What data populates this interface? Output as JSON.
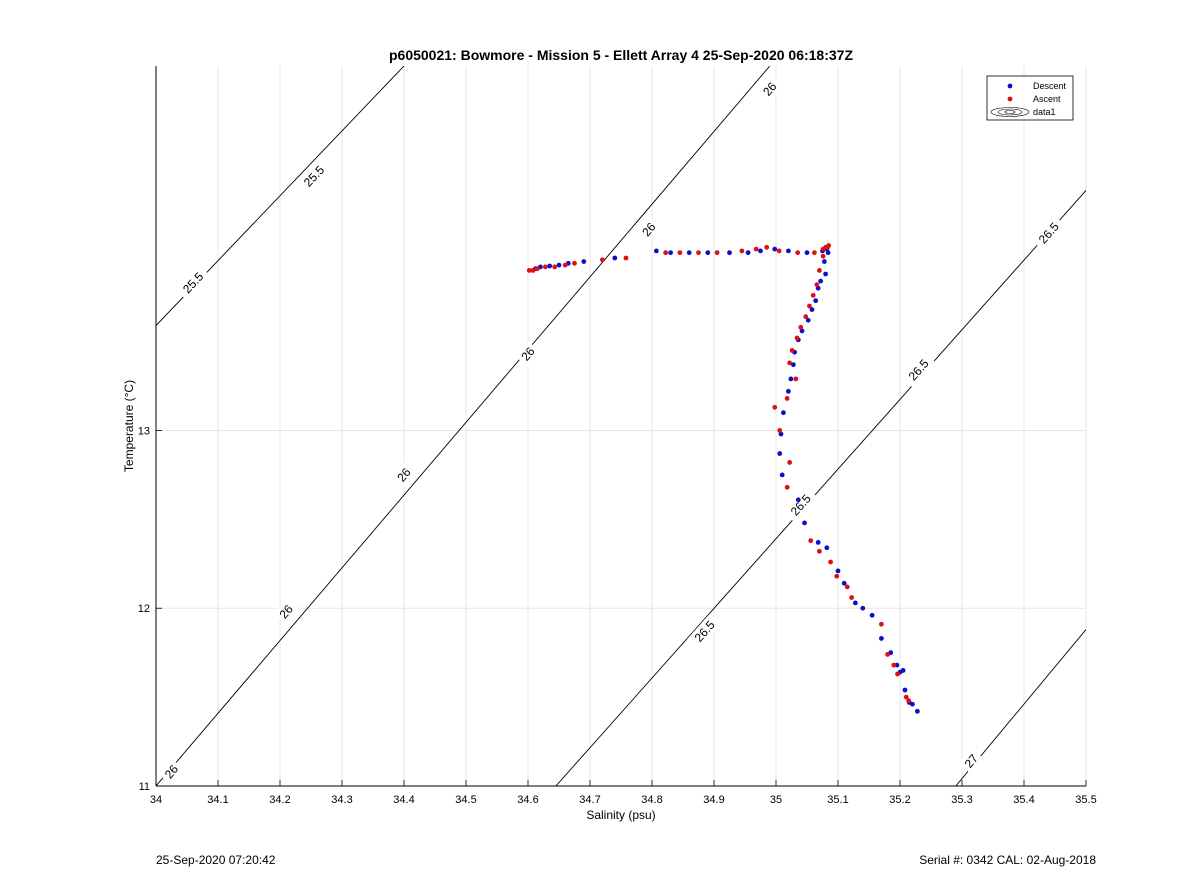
{
  "footer": {
    "timestamp": "25-Sep-2020 07:20:42",
    "serial_cal": "Serial #: 0342  CAL: 02-Aug-2018"
  },
  "chart_data": {
    "type": "scatter",
    "title": "p6050021: Bowmore - Mission 5 - Ellett Array 4 25-Sep-2020 06:18:37Z",
    "xlabel": "Salinity (psu)",
    "ylabel": "Temperature (°C)",
    "xlim": [
      34,
      35.5
    ],
    "ylim": [
      11,
      15.05
    ],
    "x_ticks": [
      34,
      34.1,
      34.2,
      34.3,
      34.4,
      34.5,
      34.6,
      34.7,
      34.8,
      34.9,
      35,
      35.1,
      35.2,
      35.3,
      35.4,
      35.5
    ],
    "x_tick_labels": [
      "34",
      "34.1",
      "34.2",
      "34.3",
      "34.4",
      "34.5",
      "34.6",
      "34.7",
      "34.8",
      "34.9",
      "35",
      "35.1",
      "35.2",
      "35.3",
      "35.4",
      "35.5"
    ],
    "y_ticks": [
      11,
      12,
      13
    ],
    "y_tick_labels": [
      "11",
      "12",
      "13"
    ],
    "grid": true,
    "legend_position": "top-right",
    "legend": [
      "Descent",
      "Ascent",
      "data1"
    ],
    "colors": {
      "descent": "#0a10c8",
      "ascent": "#e00f14",
      "contour": "#000000",
      "grid": "#e6e6e6"
    },
    "contours": [
      {
        "x": [
          34.0,
          34.4
        ],
        "y": [
          13.59,
          15.05
        ],
        "labels": [
          {
            "text": "25.5",
            "x": 34.06,
            "y": 13.83
          },
          {
            "text": "25.5",
            "x": 34.255,
            "y": 14.43
          }
        ]
      },
      {
        "x": [
          34.0,
          34.99
        ],
        "y": [
          11.0,
          15.05
        ],
        "labels": [
          {
            "text": "26",
            "x": 34.025,
            "y": 11.08
          },
          {
            "text": "26",
            "x": 34.21,
            "y": 11.98
          },
          {
            "text": "26",
            "x": 34.4,
            "y": 12.75
          },
          {
            "text": "26",
            "x": 34.6,
            "y": 13.43
          },
          {
            "text": "26",
            "x": 34.795,
            "y": 14.13
          },
          {
            "text": "26",
            "x": 34.99,
            "y": 14.92
          }
        ]
      },
      {
        "x": [
          34.645,
          35.5
        ],
        "y": [
          11.0,
          14.35
        ],
        "labels": [
          {
            "text": "26.5",
            "x": 34.885,
            "y": 11.87
          },
          {
            "text": "26.5",
            "x": 35.04,
            "y": 12.58
          },
          {
            "text": "26.5",
            "x": 35.23,
            "y": 13.34
          },
          {
            "text": "26.5",
            "x": 35.44,
            "y": 14.11
          }
        ]
      },
      {
        "x": [
          35.29,
          35.5
        ],
        "y": [
          11.0,
          11.88
        ],
        "labels": [
          {
            "text": "27",
            "x": 35.315,
            "y": 11.14
          }
        ]
      }
    ],
    "series": [
      {
        "name": "Descent",
        "points": [
          [
            34.612,
            13.91
          ],
          [
            34.62,
            13.92
          ],
          [
            34.635,
            13.925
          ],
          [
            34.65,
            13.93
          ],
          [
            34.665,
            13.94
          ],
          [
            34.69,
            13.95
          ],
          [
            34.74,
            13.97
          ],
          [
            34.807,
            14.01
          ],
          [
            34.83,
            14.0
          ],
          [
            34.86,
            14.0
          ],
          [
            34.89,
            14.0
          ],
          [
            34.925,
            14.0
          ],
          [
            34.955,
            14.0
          ],
          [
            34.975,
            14.01
          ],
          [
            34.998,
            14.02
          ],
          [
            35.02,
            14.01
          ],
          [
            35.05,
            14.0
          ],
          [
            35.075,
            14.01
          ],
          [
            35.082,
            14.02
          ],
          [
            35.084,
            14.0
          ],
          [
            35.078,
            13.95
          ],
          [
            35.08,
            13.88
          ],
          [
            35.072,
            13.84
          ],
          [
            35.068,
            13.8
          ],
          [
            35.064,
            13.73
          ],
          [
            35.058,
            13.68
          ],
          [
            35.052,
            13.62
          ],
          [
            35.042,
            13.56
          ],
          [
            35.036,
            13.51
          ],
          [
            35.03,
            13.44
          ],
          [
            35.028,
            13.37
          ],
          [
            35.024,
            13.29
          ],
          [
            35.02,
            13.22
          ],
          [
            35.012,
            13.1
          ],
          [
            35.008,
            12.98
          ],
          [
            35.006,
            12.87
          ],
          [
            35.01,
            12.75
          ],
          [
            35.036,
            12.61
          ],
          [
            35.046,
            12.48
          ],
          [
            35.068,
            12.37
          ],
          [
            35.082,
            12.34
          ],
          [
            35.1,
            12.21
          ],
          [
            35.11,
            12.14
          ],
          [
            35.128,
            12.03
          ],
          [
            35.14,
            12.0
          ],
          [
            35.155,
            11.96
          ],
          [
            35.17,
            11.83
          ],
          [
            35.185,
            11.75
          ],
          [
            35.195,
            11.68
          ],
          [
            35.2,
            11.64
          ],
          [
            35.205,
            11.65
          ],
          [
            35.208,
            11.54
          ],
          [
            35.215,
            11.47
          ],
          [
            35.22,
            11.46
          ],
          [
            35.228,
            11.42
          ]
        ]
      },
      {
        "name": "Ascent",
        "points": [
          [
            34.602,
            13.9
          ],
          [
            34.608,
            13.9
          ],
          [
            34.615,
            13.91
          ],
          [
            34.628,
            13.92
          ],
          [
            34.643,
            13.92
          ],
          [
            34.66,
            13.93
          ],
          [
            34.675,
            13.94
          ],
          [
            34.72,
            13.96
          ],
          [
            34.758,
            13.97
          ],
          [
            34.822,
            14.0
          ],
          [
            34.845,
            14.0
          ],
          [
            34.875,
            14.0
          ],
          [
            34.905,
            14.0
          ],
          [
            34.945,
            14.01
          ],
          [
            34.968,
            14.02
          ],
          [
            34.985,
            14.03
          ],
          [
            35.005,
            14.01
          ],
          [
            35.035,
            14.0
          ],
          [
            35.062,
            14.0
          ],
          [
            35.076,
            14.02
          ],
          [
            35.08,
            14.03
          ],
          [
            35.085,
            14.04
          ],
          [
            35.083,
            14.03
          ],
          [
            35.076,
            13.98
          ],
          [
            35.07,
            13.9
          ],
          [
            35.066,
            13.82
          ],
          [
            35.06,
            13.76
          ],
          [
            35.054,
            13.7
          ],
          [
            35.048,
            13.64
          ],
          [
            35.04,
            13.58
          ],
          [
            35.034,
            13.52
          ],
          [
            35.026,
            13.45
          ],
          [
            35.022,
            13.38
          ],
          [
            35.032,
            13.29
          ],
          [
            35.018,
            13.18
          ],
          [
            34.998,
            13.13
          ],
          [
            35.006,
            13.0
          ],
          [
            35.022,
            12.82
          ],
          [
            35.018,
            12.68
          ],
          [
            35.056,
            12.38
          ],
          [
            35.07,
            12.32
          ],
          [
            35.088,
            12.26
          ],
          [
            35.098,
            12.18
          ],
          [
            35.115,
            12.12
          ],
          [
            35.122,
            12.06
          ],
          [
            35.17,
            11.91
          ],
          [
            35.18,
            11.74
          ],
          [
            35.19,
            11.68
          ],
          [
            35.196,
            11.63
          ],
          [
            35.21,
            11.5
          ],
          [
            35.214,
            11.48
          ]
        ]
      }
    ]
  }
}
